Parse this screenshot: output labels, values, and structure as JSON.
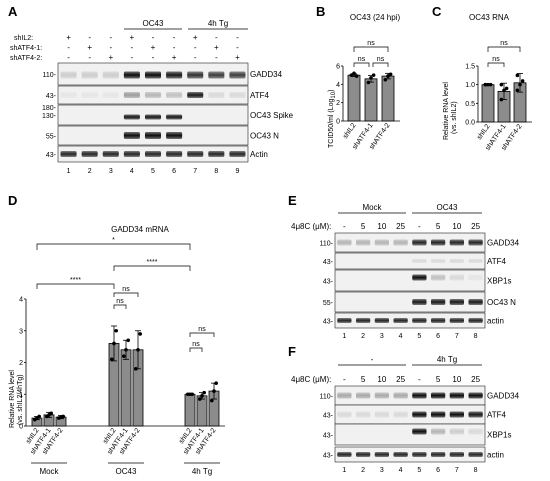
{
  "panel_a": {
    "letter": "A",
    "row_labels": [
      "shIL2:",
      "shATF4-1:",
      "shATF4-2:"
    ],
    "matrix": [
      [
        "+",
        "-",
        "-",
        "+",
        "-",
        "-",
        "+",
        "-",
        "-"
      ],
      [
        "-",
        "+",
        "-",
        "-",
        "+",
        "-",
        "-",
        "+",
        "-"
      ],
      [
        "-",
        "-",
        "+",
        "-",
        "-",
        "+",
        "-",
        "-",
        "+"
      ]
    ],
    "groups": [
      "OC43",
      "4h Tg"
    ],
    "blots": [
      {
        "label": "GADD34",
        "markers": [
          "110-"
        ]
      },
      {
        "label": "ATF4",
        "markers": [
          "43-"
        ]
      },
      {
        "label": "OC43 Spike",
        "markers": [
          "180-",
          "130-"
        ]
      },
      {
        "label": "OC43 N",
        "markers": [
          "55-"
        ]
      },
      {
        "label": "Actin",
        "markers": [
          "43-"
        ]
      }
    ],
    "lanes": [
      "1",
      "2",
      "3",
      "4",
      "5",
      "6",
      "7",
      "8",
      "9"
    ]
  },
  "panel_b": {
    "letter": "B",
    "title": "OC43 (24 hpi)",
    "ylabel": "TCID50/ml (Log",
    "ylabel_sub": "10",
    "ylabel_end": ")",
    "yticks": [
      "0",
      "2",
      "4",
      "6"
    ],
    "categories": [
      "shIL2",
      "shATF4-1",
      "shATF4-2"
    ],
    "ns": [
      "ns",
      "ns",
      "ns"
    ]
  },
  "panel_c": {
    "letter": "C",
    "title": "OC43 RNA",
    "ylabel": "Relative RNA level",
    "ylabel2": "(vs. shIL2)",
    "yticks": [
      "0.0",
      "0.5",
      "1.0",
      "1.5"
    ],
    "categories": [
      "shIL2",
      "shATF4-1",
      "shATF4-2"
    ],
    "ns": [
      "ns",
      "ns"
    ]
  },
  "panel_d": {
    "letter": "D",
    "title": "GADD34 mRNA",
    "ylabel": "Relative RNA level",
    "ylabel2": "(vs. shIL2/4hTg)",
    "yticks": [
      "0",
      "1",
      "2",
      "3",
      "4"
    ],
    "categories": [
      "shIL2",
      "shATF4-1",
      "shATF4-2",
      "shIL2",
      "shATF4-1",
      "shATF4-2",
      "shIL2",
      "shATF4-1",
      "shATF4-2"
    ],
    "groups": [
      "Mock",
      "OC43",
      "4h Tg"
    ],
    "sig": [
      "*",
      "****",
      "****"
    ],
    "ns": [
      "ns",
      "ns",
      "ns",
      "ns"
    ]
  },
  "panel_e": {
    "letter": "E",
    "treatment_label": "4μ8C (μM):",
    "groups": [
      "Mock",
      "OC43"
    ],
    "doses": [
      "-",
      "5",
      "10",
      "25",
      "-",
      "5",
      "10",
      "25"
    ],
    "blots": [
      {
        "label": "GADD34",
        "markers": [
          "110-"
        ]
      },
      {
        "label": "ATF4",
        "markers": [
          "43-"
        ]
      },
      {
        "label": "XBP1s",
        "markers": [
          "43-"
        ]
      },
      {
        "label": "OC43 N",
        "markers": [
          "55-"
        ]
      },
      {
        "label": "actin",
        "markers": [
          "43-"
        ]
      }
    ],
    "lanes": [
      "1",
      "2",
      "3",
      "4",
      "5",
      "6",
      "7",
      "8"
    ]
  },
  "panel_f": {
    "letter": "F",
    "treatment_label": "4μ8C (μM):",
    "groups": [
      "-",
      "4h Tg"
    ],
    "doses": [
      "-",
      "5",
      "10",
      "25",
      "-",
      "5",
      "10",
      "25"
    ],
    "blots": [
      {
        "label": "GADD34",
        "markers": [
          "110-"
        ]
      },
      {
        "label": "ATF4",
        "markers": [
          "43-"
        ]
      },
      {
        "label": "XBP1s",
        "markers": [
          "43-"
        ]
      },
      {
        "label": "actin",
        "markers": [
          "43-"
        ]
      }
    ],
    "lanes": [
      "1",
      "2",
      "3",
      "4",
      "5",
      "6",
      "7",
      "8"
    ]
  },
  "chart_data": [
    {
      "type": "bar",
      "panel": "B",
      "title": "OC43 (24 hpi)",
      "ylabel": "TCID50/ml (Log10)",
      "categories": [
        "shIL2",
        "shATF4-1",
        "shATF4-2"
      ],
      "values": [
        5.0,
        4.6,
        4.9
      ],
      "errors": [
        0.15,
        0.35,
        0.3
      ],
      "points": [
        [
          5.0,
          5.2,
          4.9
        ],
        [
          4.2,
          4.7,
          5.0
        ],
        [
          4.5,
          4.9,
          5.1
        ]
      ],
      "ylim": [
        0,
        6
      ]
    },
    {
      "type": "bar",
      "panel": "C",
      "title": "OC43 RNA",
      "ylabel": "Relative RNA level (vs. shIL2)",
      "categories": [
        "shIL2",
        "shATF4-1",
        "shATF4-2"
      ],
      "values": [
        1.0,
        0.82,
        1.05
      ],
      "errors": [
        0.0,
        0.22,
        0.25
      ],
      "points": [
        [
          1.0,
          1.0,
          1.0,
          1.0
        ],
        [
          0.6,
          0.85,
          0.9,
          1.0
        ],
        [
          0.85,
          1.0,
          1.1,
          1.25
        ]
      ],
      "ylim": [
        0,
        1.5
      ]
    },
    {
      "type": "bar",
      "panel": "D",
      "title": "GADD34 mRNA",
      "ylabel": "Relative RNA level (vs. shIL2/4hTg)",
      "groups": [
        "Mock",
        "OC43",
        "4h Tg"
      ],
      "categories": [
        "shIL2",
        "shATF4-1",
        "shATF4-2"
      ],
      "series": [
        {
          "group": "Mock",
          "values": [
            0.25,
            0.35,
            0.28
          ],
          "errors": [
            0.05,
            0.08,
            0.05
          ]
        },
        {
          "group": "OC43",
          "values": [
            2.6,
            2.4,
            2.4
          ],
          "errors": [
            0.55,
            0.3,
            0.6
          ]
        },
        {
          "group": "4h Tg",
          "values": [
            1.0,
            0.95,
            1.1
          ],
          "errors": [
            0.0,
            0.1,
            0.25
          ]
        }
      ],
      "points": [
        [
          0.2,
          0.25,
          0.3
        ],
        [
          0.3,
          0.35,
          0.4
        ],
        [
          0.25,
          0.28,
          0.3
        ],
        [
          2.1,
          2.6,
          3.0
        ],
        [
          2.2,
          2.4,
          2.7
        ],
        [
          1.8,
          2.4,
          2.9
        ],
        [
          1.0,
          1.0,
          1.0
        ],
        [
          0.85,
          0.95,
          1.05
        ],
        [
          0.8,
          1.1,
          1.35
        ]
      ],
      "ylim": [
        0,
        4
      ]
    }
  ]
}
